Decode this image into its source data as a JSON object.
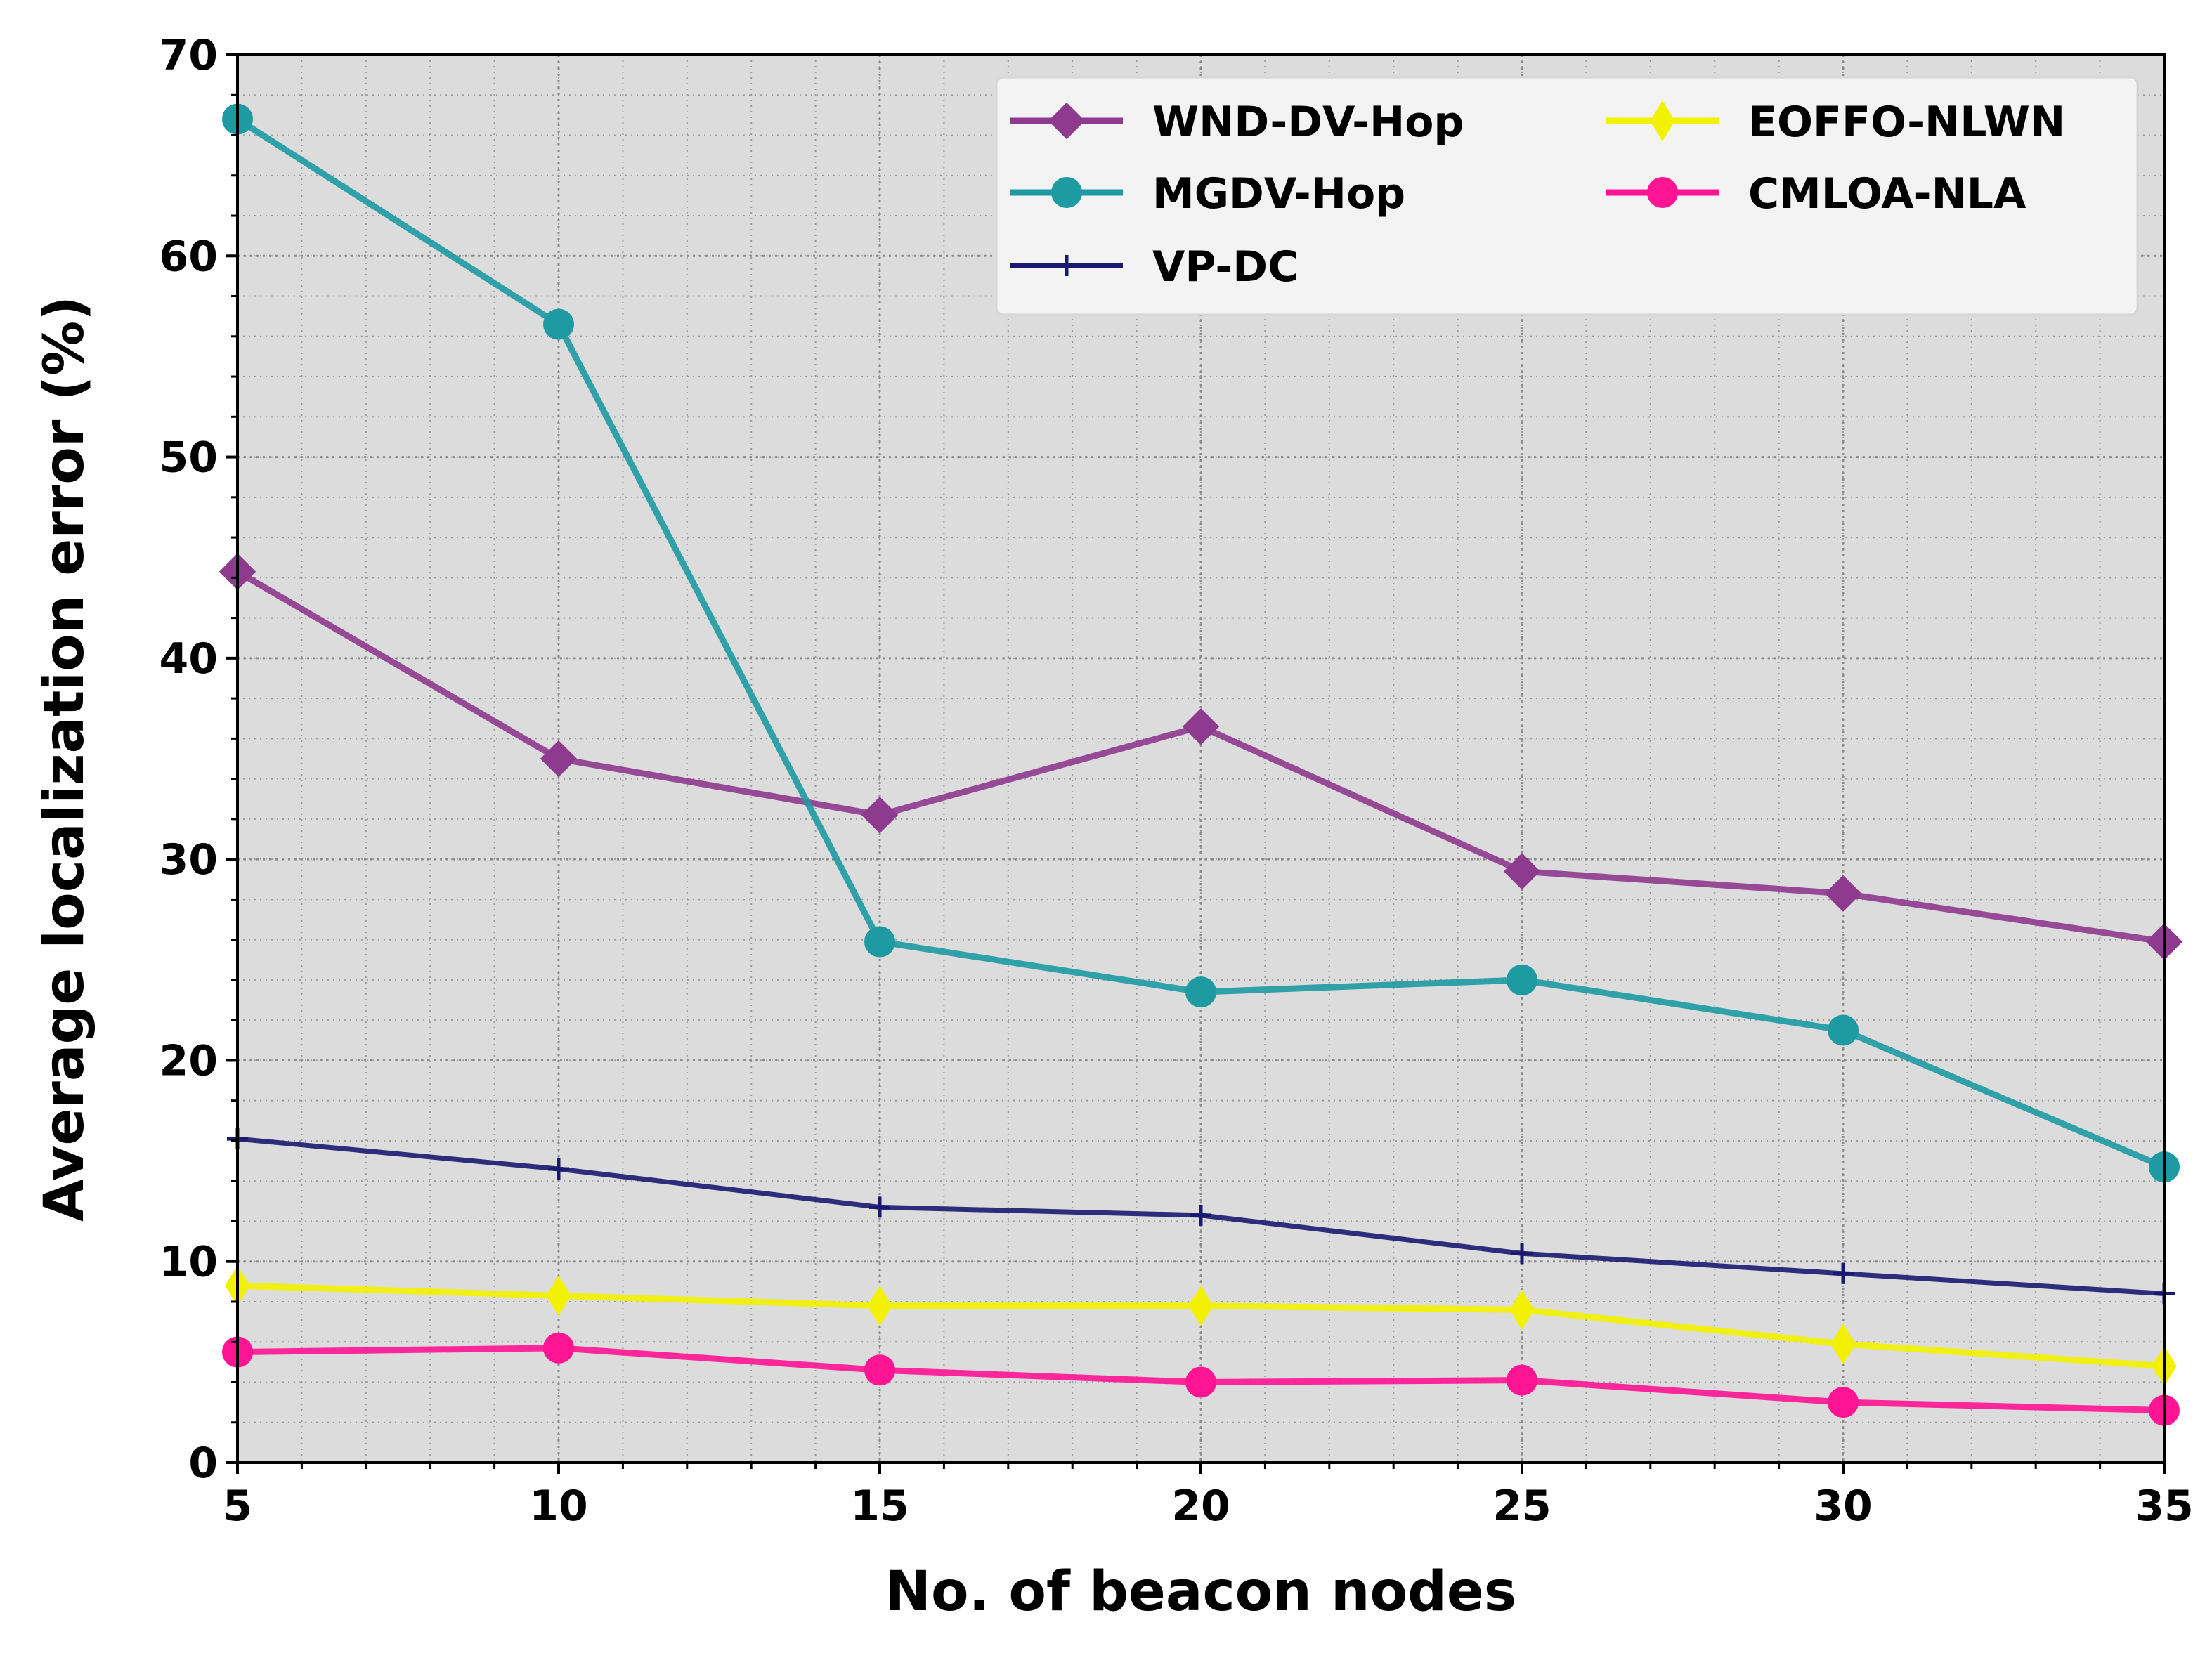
{
  "chart_data": {
    "type": "line",
    "title": "",
    "xlabel": "No. of beacon nodes",
    "ylabel": "Average localization error (%)",
    "x": [
      5,
      10,
      15,
      20,
      25,
      30,
      35
    ],
    "xlim": [
      5,
      35
    ],
    "ylim": [
      0,
      70
    ],
    "xticks": [
      5,
      10,
      15,
      20,
      25,
      30,
      35
    ],
    "yticks": [
      0,
      10,
      20,
      30,
      40,
      50,
      60,
      70
    ],
    "grid": true,
    "legend_position": "top-right",
    "series": [
      {
        "name": "WND-DV-Hop",
        "values": [
          44.3,
          35.0,
          32.2,
          36.6,
          29.4,
          28.3,
          25.9
        ],
        "color": "#8e3a8e",
        "marker": "diamond"
      },
      {
        "name": "MGDV-Hop",
        "values": [
          66.8,
          56.6,
          25.9,
          23.4,
          24.0,
          21.5,
          14.7
        ],
        "color": "#1e9aa3",
        "marker": "circle"
      },
      {
        "name": "VP-DC",
        "values": [
          16.1,
          14.6,
          12.7,
          12.3,
          10.4,
          9.4,
          8.4
        ],
        "color": "#191970",
        "marker": "plus"
      },
      {
        "name": "EOFFO-NLWN",
        "values": [
          8.8,
          8.3,
          7.8,
          7.8,
          7.6,
          5.9,
          4.8
        ],
        "color": "#f2f200",
        "marker": "thin-diamond"
      },
      {
        "name": "CMLOA-NLA",
        "values": [
          5.5,
          5.7,
          4.6,
          4.0,
          4.1,
          3.0,
          2.6
        ],
        "color": "#ff1493",
        "marker": "circle"
      }
    ]
  }
}
